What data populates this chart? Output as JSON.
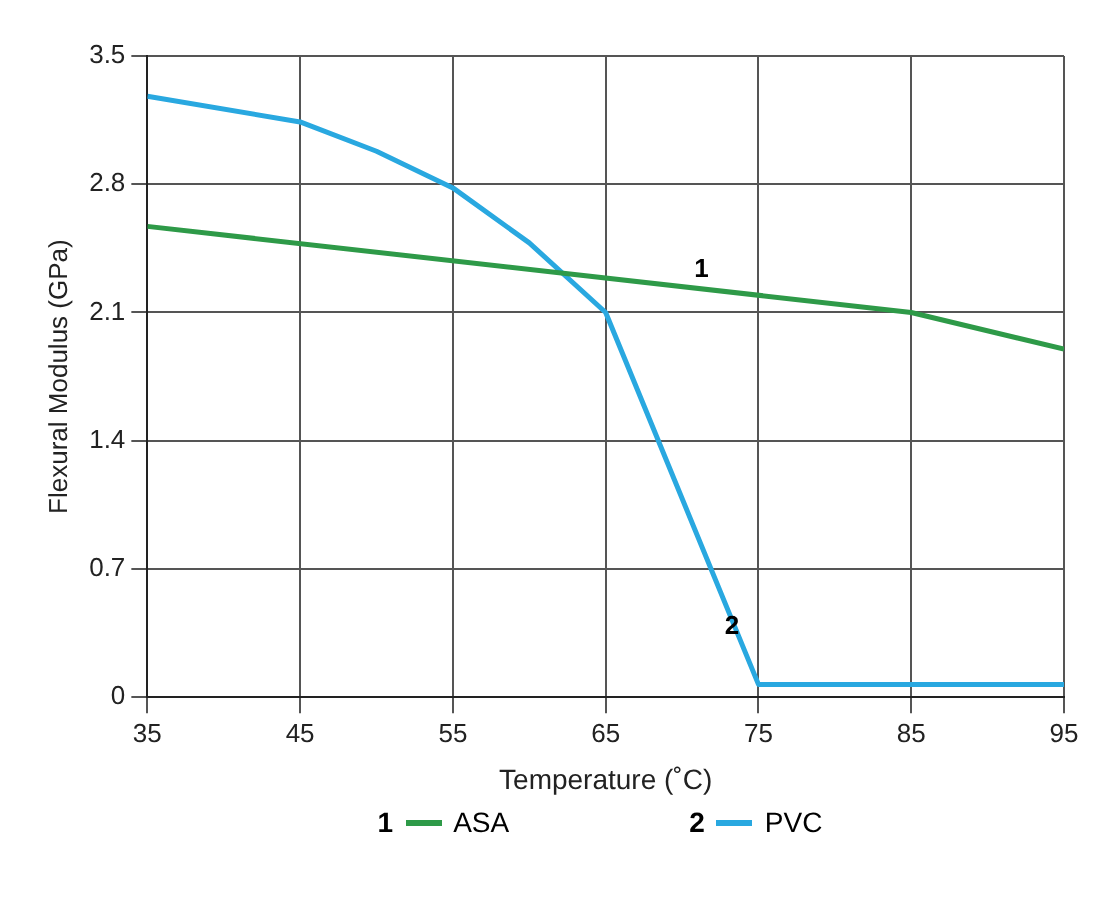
{
  "chart_data": {
    "type": "line",
    "xlabel": "Temperature (˚C)",
    "ylabel": "Flexural Modulus (GPa)",
    "xlim": [
      35,
      95
    ],
    "xticks": [
      35,
      45,
      55,
      65,
      75,
      85,
      95
    ],
    "ylim": [
      0,
      3.5
    ],
    "yticks": [
      0,
      0.7,
      1.4,
      2.1,
      2.8,
      3.5
    ],
    "grid": true,
    "legend": "bottom",
    "marker": "none",
    "line_style": "solid",
    "series": [
      {
        "name": "ASA",
        "color": "#2e9a48",
        "x": [
          35,
          85,
          95
        ],
        "values": [
          2.57,
          2.1,
          1.9
        ]
      },
      {
        "name": "PVC",
        "color": "#29a8e0",
        "x": [
          35,
          45,
          50,
          55,
          60,
          65,
          75,
          95
        ],
        "values": [
          3.28,
          3.14,
          2.98,
          2.78,
          2.48,
          2.1,
          0.07,
          0.07
        ]
      }
    ],
    "annotations": [
      {
        "text": "1",
        "x": 72,
        "y": 2.22
      },
      {
        "text": "2",
        "x": 74,
        "y": 0.27
      }
    ]
  }
}
